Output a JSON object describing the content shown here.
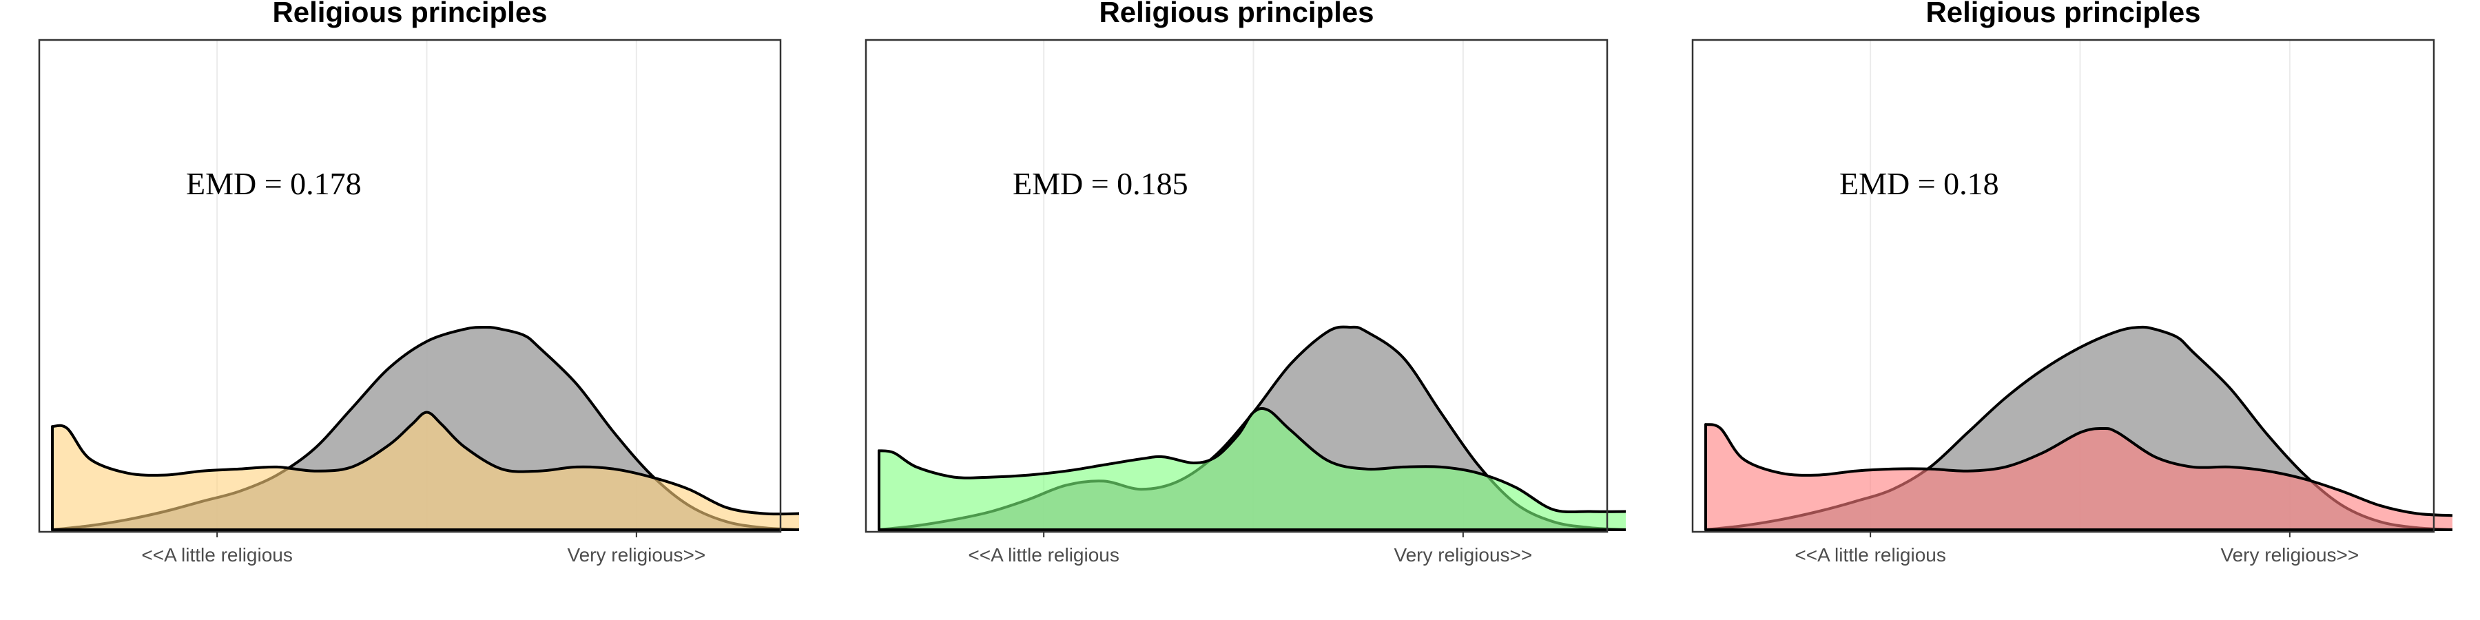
{
  "chart_data": [
    {
      "type": "area",
      "title": "Religious principles",
      "annotation": "EMD = 0.178",
      "x_tick_labels": [
        "<<A little religious",
        "Very religious>>"
      ],
      "x_tick_values": [
        0.22,
        0.78
      ],
      "xlim": [
        0,
        1
      ],
      "grid": true,
      "series": [
        {
          "fill": "#aaaaaa",
          "opacity": 0.92,
          "x": [
            0,
            0.05,
            0.1,
            0.15,
            0.2,
            0.25,
            0.3,
            0.35,
            0.4,
            0.45,
            0.5,
            0.55,
            0.58,
            0.6,
            0.63,
            0.65,
            0.7,
            0.75,
            0.8,
            0.85,
            0.9,
            0.95,
            1
          ],
          "y": [
            0,
            0.02,
            0.05,
            0.09,
            0.14,
            0.19,
            0.27,
            0.4,
            0.6,
            0.8,
            0.93,
            0.99,
            1,
            0.99,
            0.96,
            0.9,
            0.72,
            0.48,
            0.27,
            0.12,
            0.04,
            0.01,
            0
          ]
        },
        {
          "fill": "#ffd27f",
          "opacity": 0.6,
          "x": [
            0,
            0.02,
            0.05,
            0.1,
            0.15,
            0.2,
            0.25,
            0.3,
            0.35,
            0.4,
            0.45,
            0.48,
            0.5,
            0.52,
            0.55,
            0.6,
            0.65,
            0.7,
            0.75,
            0.8,
            0.85,
            0.9,
            0.95,
            1
          ],
          "y": [
            0.51,
            0.5,
            0.35,
            0.28,
            0.27,
            0.29,
            0.3,
            0.31,
            0.29,
            0.31,
            0.42,
            0.52,
            0.58,
            0.52,
            0.41,
            0.3,
            0.29,
            0.31,
            0.3,
            0.26,
            0.2,
            0.11,
            0.08,
            0.08
          ]
        }
      ]
    },
    {
      "type": "area",
      "title": "Religious principles",
      "annotation": "EMD = 0.185",
      "x_tick_labels": [
        "<<A little religious",
        "Very religious>>"
      ],
      "x_tick_values": [
        0.22,
        0.78
      ],
      "xlim": [
        0,
        1
      ],
      "grid": true,
      "series": [
        {
          "fill": "#aaaaaa",
          "opacity": 0.92,
          "x": [
            0,
            0.05,
            0.1,
            0.15,
            0.2,
            0.25,
            0.3,
            0.35,
            0.4,
            0.45,
            0.5,
            0.55,
            0.6,
            0.63,
            0.65,
            0.7,
            0.75,
            0.8,
            0.85,
            0.9,
            0.95,
            1
          ],
          "y": [
            0,
            0.02,
            0.05,
            0.09,
            0.15,
            0.22,
            0.24,
            0.2,
            0.24,
            0.37,
            0.58,
            0.82,
            0.98,
            1,
            0.98,
            0.85,
            0.58,
            0.32,
            0.13,
            0.04,
            0.01,
            0
          ]
        },
        {
          "fill": "#7fff7f",
          "opacity": 0.6,
          "x": [
            0,
            0.02,
            0.05,
            0.1,
            0.15,
            0.2,
            0.25,
            0.3,
            0.35,
            0.38,
            0.42,
            0.45,
            0.48,
            0.5,
            0.52,
            0.55,
            0.6,
            0.65,
            0.7,
            0.75,
            0.8,
            0.85,
            0.9,
            0.95,
            1
          ],
          "y": [
            0.39,
            0.38,
            0.31,
            0.26,
            0.26,
            0.27,
            0.29,
            0.32,
            0.35,
            0.36,
            0.33,
            0.36,
            0.47,
            0.58,
            0.59,
            0.49,
            0.34,
            0.3,
            0.31,
            0.31,
            0.28,
            0.21,
            0.1,
            0.09,
            0.09
          ]
        }
      ]
    },
    {
      "type": "area",
      "title": "Religious principles",
      "annotation": "EMD = 0.18",
      "x_tick_labels": [
        "<<A little religious",
        "Very religious>>"
      ],
      "x_tick_values": [
        0.22,
        0.78
      ],
      "xlim": [
        0,
        1
      ],
      "grid": true,
      "series": [
        {
          "fill": "#aaaaaa",
          "opacity": 0.92,
          "x": [
            0,
            0.05,
            0.1,
            0.15,
            0.2,
            0.25,
            0.3,
            0.35,
            0.4,
            0.45,
            0.5,
            0.55,
            0.58,
            0.6,
            0.63,
            0.65,
            0.7,
            0.75,
            0.8,
            0.85,
            0.9,
            0.95,
            1
          ],
          "y": [
            0,
            0.02,
            0.05,
            0.09,
            0.14,
            0.2,
            0.31,
            0.48,
            0.65,
            0.79,
            0.9,
            0.98,
            1,
            0.99,
            0.95,
            0.88,
            0.7,
            0.47,
            0.27,
            0.12,
            0.04,
            0.01,
            0
          ]
        },
        {
          "fill": "#ff7f7f",
          "opacity": 0.6,
          "x": [
            0,
            0.02,
            0.05,
            0.1,
            0.15,
            0.2,
            0.25,
            0.3,
            0.35,
            0.4,
            0.45,
            0.5,
            0.53,
            0.55,
            0.6,
            0.65,
            0.7,
            0.75,
            0.8,
            0.85,
            0.9,
            0.95,
            1
          ],
          "y": [
            0.52,
            0.5,
            0.35,
            0.28,
            0.27,
            0.29,
            0.3,
            0.3,
            0.29,
            0.31,
            0.38,
            0.48,
            0.5,
            0.48,
            0.36,
            0.31,
            0.31,
            0.29,
            0.25,
            0.19,
            0.12,
            0.08,
            0.07
          ]
        }
      ]
    }
  ]
}
